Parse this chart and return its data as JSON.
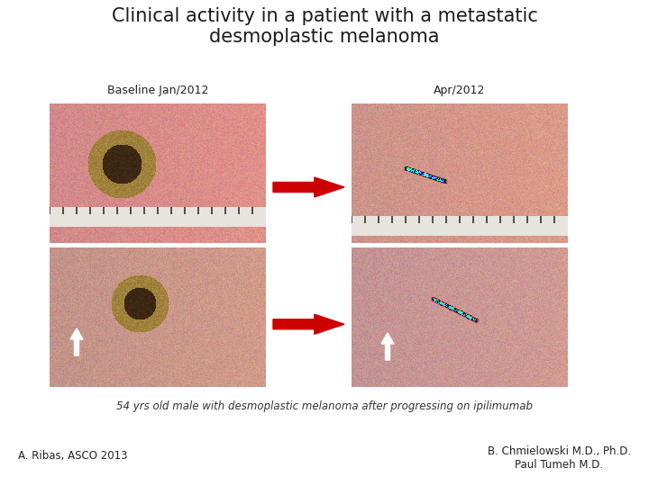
{
  "title_line1": "Clinical activity in a patient with a metastatic",
  "title_line2": "desmoplastic melanoma",
  "label_baseline": "Baseline Jan/2012",
  "label_apr": "Apr/2012",
  "caption": "54 yrs old male with desmoplastic melanoma after progressing on ipilimumab",
  "author_left": "A. Ribas, ASCO 2013",
  "author_right": "B. Chmielowski M.D., Ph.D.\nPaul Tumeh M.D.",
  "background_color": "#ffffff",
  "title_color": "#1a1a1a",
  "label_color": "#222222",
  "caption_color": "#333333",
  "arrow_color": "#cc0000",
  "title_fontsize": 15,
  "label_fontsize": 9,
  "caption_fontsize": 8.5,
  "author_fontsize": 8.5
}
